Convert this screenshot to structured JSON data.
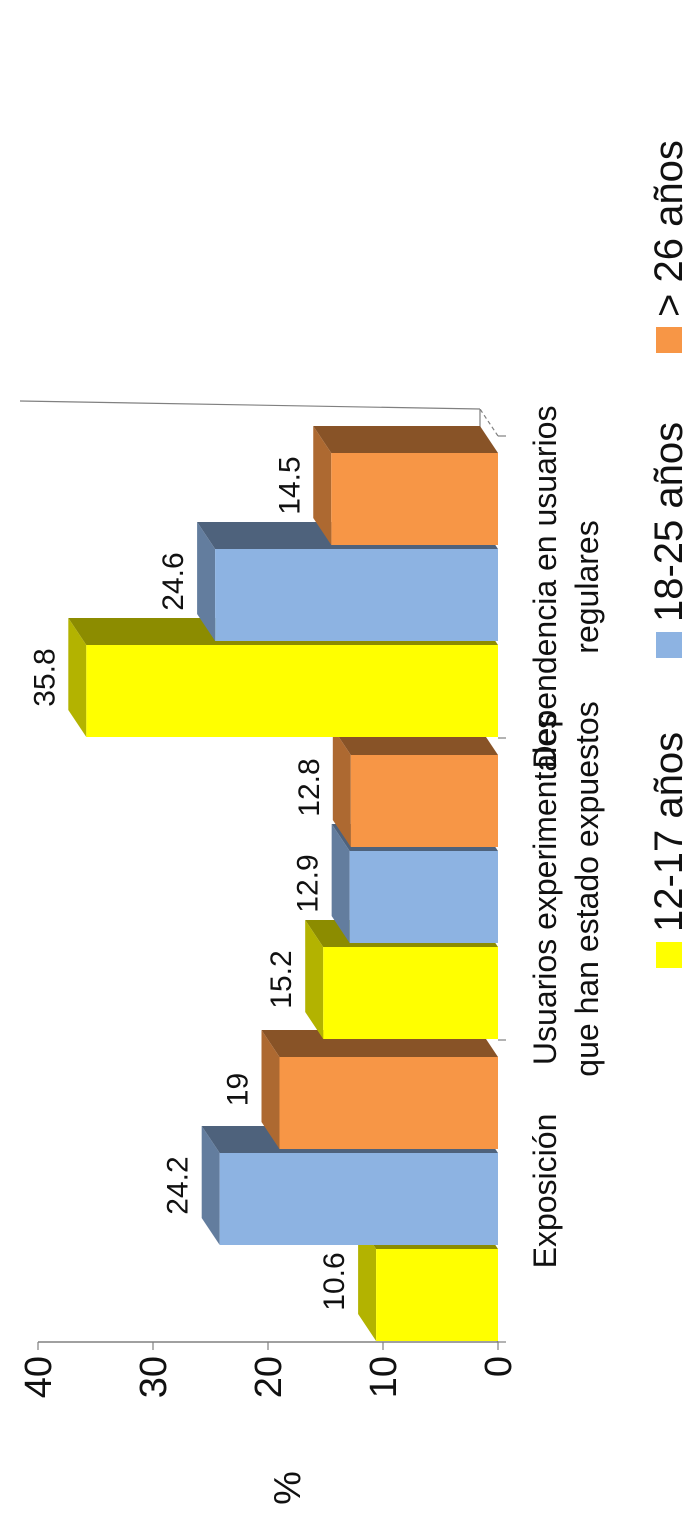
{
  "chart_data": {
    "type": "bar",
    "ylabel": "%",
    "ylim": [
      0,
      40
    ],
    "yticks": [
      0,
      10,
      20,
      30,
      40
    ],
    "categories": [
      [
        "Exposición"
      ],
      [
        "Usuarios experimentales",
        "que han estado expuestos"
      ],
      [
        "Dependencia en usuarios",
        "regulares"
      ]
    ],
    "series": [
      {
        "name": "12-17 años",
        "color": "#FFFF00",
        "values": [
          10.6,
          15.2,
          35.8
        ],
        "labels": [
          "10.6",
          "15.2",
          "35.8"
        ]
      },
      {
        "name": "18-25 años",
        "color": "#8DB3E2",
        "values": [
          24.2,
          12.9,
          24.6
        ],
        "labels": [
          "24.2",
          "12.9",
          "24.6"
        ]
      },
      {
        "name": "> 26 años",
        "color": "#F79646",
        "values": [
          19,
          12.8,
          14.5
        ],
        "labels": [
          "19",
          "12.8",
          "14.5"
        ]
      }
    ],
    "legend_position": "bottom",
    "style": "3d",
    "orientation": "rotated"
  }
}
